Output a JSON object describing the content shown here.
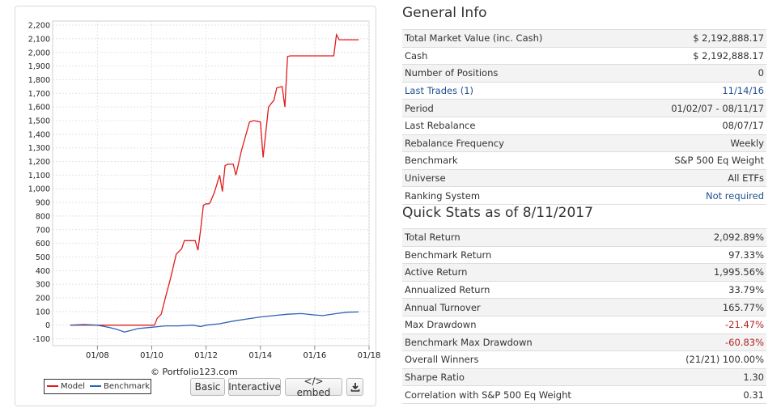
{
  "chart_data": {
    "type": "line",
    "title": "",
    "xlabel": "",
    "ylabel": "",
    "x_ticks": [
      "01/08",
      "01/10",
      "01/12",
      "01/14",
      "01/16",
      "01/18"
    ],
    "y_ticks": [
      "-100",
      "0",
      "100",
      "200",
      "300",
      "400",
      "500",
      "600",
      "700",
      "800",
      "900",
      "1,000",
      "1,100",
      "1,200",
      "1,300",
      "1,400",
      "1,500",
      "1,600",
      "1,700",
      "1,800",
      "1,900",
      "2,000",
      "2,100",
      "2,200"
    ],
    "ylim": [
      -150,
      2230
    ],
    "xlim": [
      2006.35,
      2018.0
    ],
    "grid": true,
    "legend_position": "bottom-left",
    "series": [
      {
        "name": "Model",
        "color": "#e11b1b",
        "x": [
          2007.0,
          2010.1,
          2010.2,
          2010.35,
          2010.5,
          2010.7,
          2010.9,
          2011.0,
          2011.1,
          2011.2,
          2011.5,
          2011.6,
          2011.7,
          2011.8,
          2011.9,
          2012.0,
          2012.1,
          2012.15,
          2012.3,
          2012.5,
          2012.6,
          2012.7,
          2012.8,
          2012.9,
          2013.0,
          2013.1,
          2013.3,
          2013.5,
          2013.6,
          2013.75,
          2014.0,
          2014.1,
          2014.3,
          2014.5,
          2014.6,
          2014.8,
          2014.9,
          2015.0,
          2015.1,
          2015.15,
          2015.2,
          2015.6,
          2016.0,
          2016.7,
          2016.8,
          2016.9,
          2017.62
        ],
        "y": [
          0,
          0,
          50,
          80,
          200,
          350,
          520,
          540,
          560,
          620,
          620,
          620,
          550,
          700,
          880,
          890,
          890,
          900,
          970,
          1100,
          980,
          1170,
          1180,
          1180,
          1180,
          1100,
          1280,
          1420,
          1490,
          1500,
          1490,
          1230,
          1600,
          1650,
          1740,
          1750,
          1600,
          1970,
          1975,
          1975,
          1975,
          1975,
          1975,
          1975,
          2130,
          2093,
          2093
        ]
      },
      {
        "name": "Benchmark",
        "color": "#2d62b7",
        "x": [
          2007.0,
          2007.5,
          2008.0,
          2008.4,
          2008.7,
          2009.0,
          2009.2,
          2009.5,
          2010.0,
          2010.5,
          2011.0,
          2011.5,
          2011.8,
          2012.0,
          2012.5,
          2013.0,
          2013.5,
          2014.0,
          2014.5,
          2015.0,
          2015.5,
          2016.0,
          2016.3,
          2016.8,
          2017.2,
          2017.62
        ],
        "y": [
          0,
          5,
          0,
          -15,
          -30,
          -50,
          -40,
          -25,
          -15,
          -5,
          -5,
          0,
          -10,
          0,
          10,
          30,
          45,
          60,
          70,
          80,
          85,
          75,
          70,
          85,
          95,
          97
        ]
      }
    ]
  },
  "chart_panel": {
    "copyright": "© Portfolio123.com",
    "buttons": {
      "basic": "Basic",
      "interactive": "Interactive",
      "embed": "</> embed",
      "download_icon": "download-icon"
    }
  },
  "general_info": {
    "title": "General Info",
    "rows": [
      {
        "label": "Total Market Value (inc. Cash)",
        "value": "$ 2,192,888.17"
      },
      {
        "label": "Cash",
        "value": "$ 2,192,888.17"
      },
      {
        "label": "Number of Positions",
        "value": "0"
      },
      {
        "label": "Last Trades (1)",
        "value": "11/14/16"
      },
      {
        "label": "Period",
        "value": "01/02/07 - 08/11/17"
      },
      {
        "label": "Last Rebalance",
        "value": "08/07/17"
      },
      {
        "label": "Rebalance Frequency",
        "value": "Weekly"
      },
      {
        "label": "Benchmark",
        "value": "S&P 500 Eq Weight"
      },
      {
        "label": "Universe",
        "value": "All ETFs"
      },
      {
        "label": "Ranking System",
        "value": "Not required"
      }
    ]
  },
  "quick_stats": {
    "title": "Quick Stats as of 8/11/2017",
    "rows": [
      {
        "label": "Total Return",
        "value": "2,092.89%"
      },
      {
        "label": "Benchmark Return",
        "value": "97.33%"
      },
      {
        "label": "Active Return",
        "value": "1,995.56%"
      },
      {
        "label": "Annualized Return",
        "value": "33.79%"
      },
      {
        "label": "Annual Turnover",
        "value": "165.77%"
      },
      {
        "label": "Max Drawdown",
        "value": "-21.47%"
      },
      {
        "label": "Benchmark Max Drawdown",
        "value": "-60.83%"
      },
      {
        "label": "Overall Winners",
        "value": "(21/21) 100.00%"
      },
      {
        "label": "Sharpe Ratio",
        "value": "1.30"
      },
      {
        "label": "Correlation with S&P 500 Eq Weight",
        "value": "0.31"
      }
    ]
  },
  "colors": {
    "link": "#1f4f8f",
    "negative": "#b22222"
  }
}
